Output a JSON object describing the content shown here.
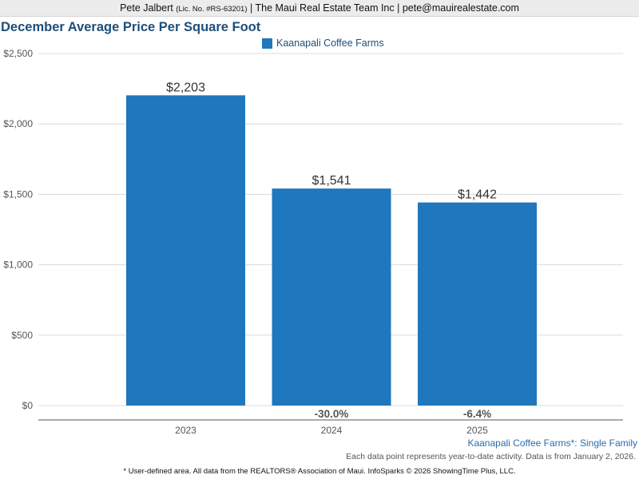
{
  "header": {
    "agent_name": "Pete Jalbert",
    "license": "(Lic. No. #RS-63201)",
    "rest": "| The Maui Real Estate Team Inc | pete@mauirealestate.com"
  },
  "chart_data": {
    "type": "bar",
    "title": "December Average Price Per Square Foot",
    "categories": [
      "2023",
      "2024",
      "2025"
    ],
    "series": [
      {
        "name": "Kaanapali Coffee Farms",
        "values": [
          2203,
          1541,
          1442
        ],
        "color": "#1f77bd"
      }
    ],
    "data_labels": [
      "$2,203",
      "$1,541",
      "$1,442"
    ],
    "change_labels": [
      "",
      "-30.0%",
      "-6.4%"
    ],
    "y_ticks": [
      "$0",
      "$500",
      "$1,000",
      "$1,500",
      "$2,000",
      "$2,500"
    ],
    "ylim": [
      0,
      2500
    ],
    "grid": true,
    "legend_position": "top-center"
  },
  "footer": {
    "series_note": "Kaanapali Coffee Farms*: Single Family",
    "data_note": "Each data point represents year-to-date activity. Data is from January 2, 2026.",
    "legal": "* User-defined area. All data from the REALTORS® Association of Maui. InfoSparks © 2026 ShowingTime Plus, LLC."
  }
}
